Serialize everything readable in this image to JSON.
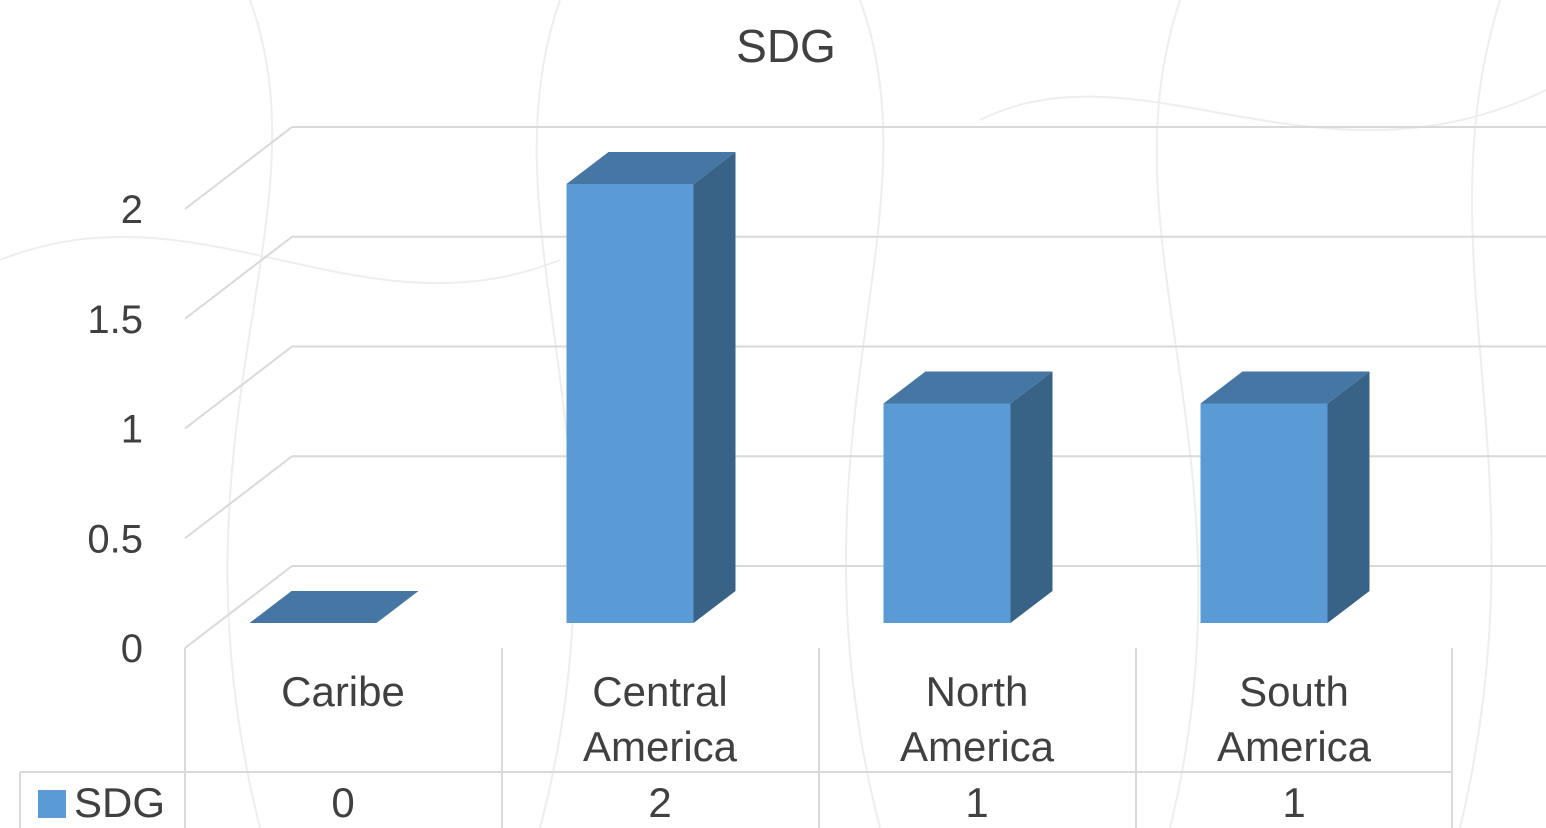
{
  "chart_data": {
    "type": "bar",
    "title": "SDG",
    "categories": [
      "Caribe",
      "Central America",
      "North America",
      "South America"
    ],
    "series": [
      {
        "name": "SDG",
        "values": [
          0,
          2,
          1,
          1
        ],
        "color": "#5b9bd5"
      }
    ],
    "ylim": [
      0,
      2
    ],
    "yticks": [
      "0",
      "0.5",
      "1",
      "1.5",
      "2"
    ],
    "grid": true,
    "three_d": true,
    "legend_placement": "data-table",
    "data_table": true
  }
}
